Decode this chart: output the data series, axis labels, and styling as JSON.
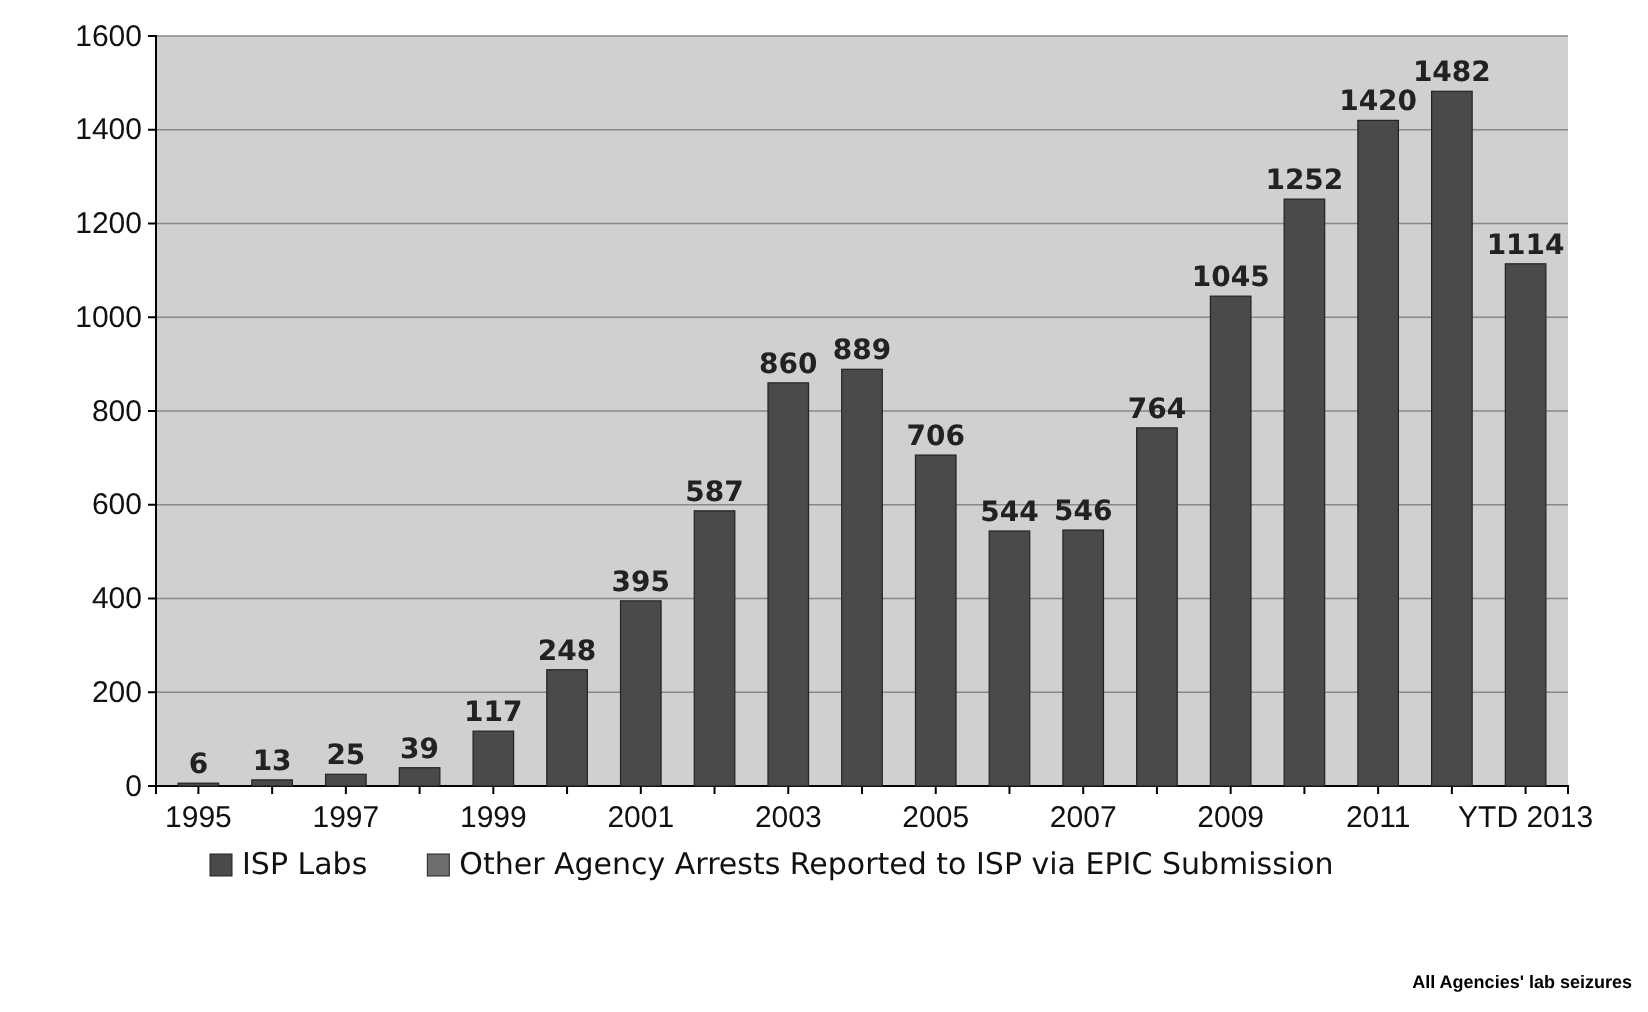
{
  "chart_data": {
    "type": "bar",
    "stacked": true,
    "categories": [
      "1995",
      null,
      "1997",
      null,
      "1999",
      null,
      "2001",
      null,
      "2003",
      null,
      "2005",
      null,
      "2007",
      null,
      "2009",
      null,
      "2011",
      null,
      "YTD 2013"
    ],
    "series": [
      {
        "name": "ISP Labs",
        "color": "#4a4a4a",
        "values": [
          6,
          13,
          25,
          39,
          117,
          248,
          395,
          587,
          860,
          889,
          706,
          544,
          546,
          764,
          1045,
          1252,
          1420,
          1482,
          1114
        ]
      },
      {
        "name": "Other Agency Arrests Reported to ISP via EPIC Submission",
        "color": "#6e6e6e",
        "values": [
          null,
          null,
          null,
          null,
          null,
          null,
          null,
          null,
          null,
          null,
          null,
          null,
          null,
          null,
          null,
          null,
          null,
          null,
          null
        ]
      }
    ],
    "data_labels": true,
    "ylim": [
      0,
      1600
    ],
    "yticks": [
      0,
      200,
      400,
      600,
      800,
      1000,
      1200,
      1400,
      1600
    ],
    "grid": "y",
    "legend": "bottom",
    "annotations": [
      "All Agencies' lab seizures"
    ]
  }
}
